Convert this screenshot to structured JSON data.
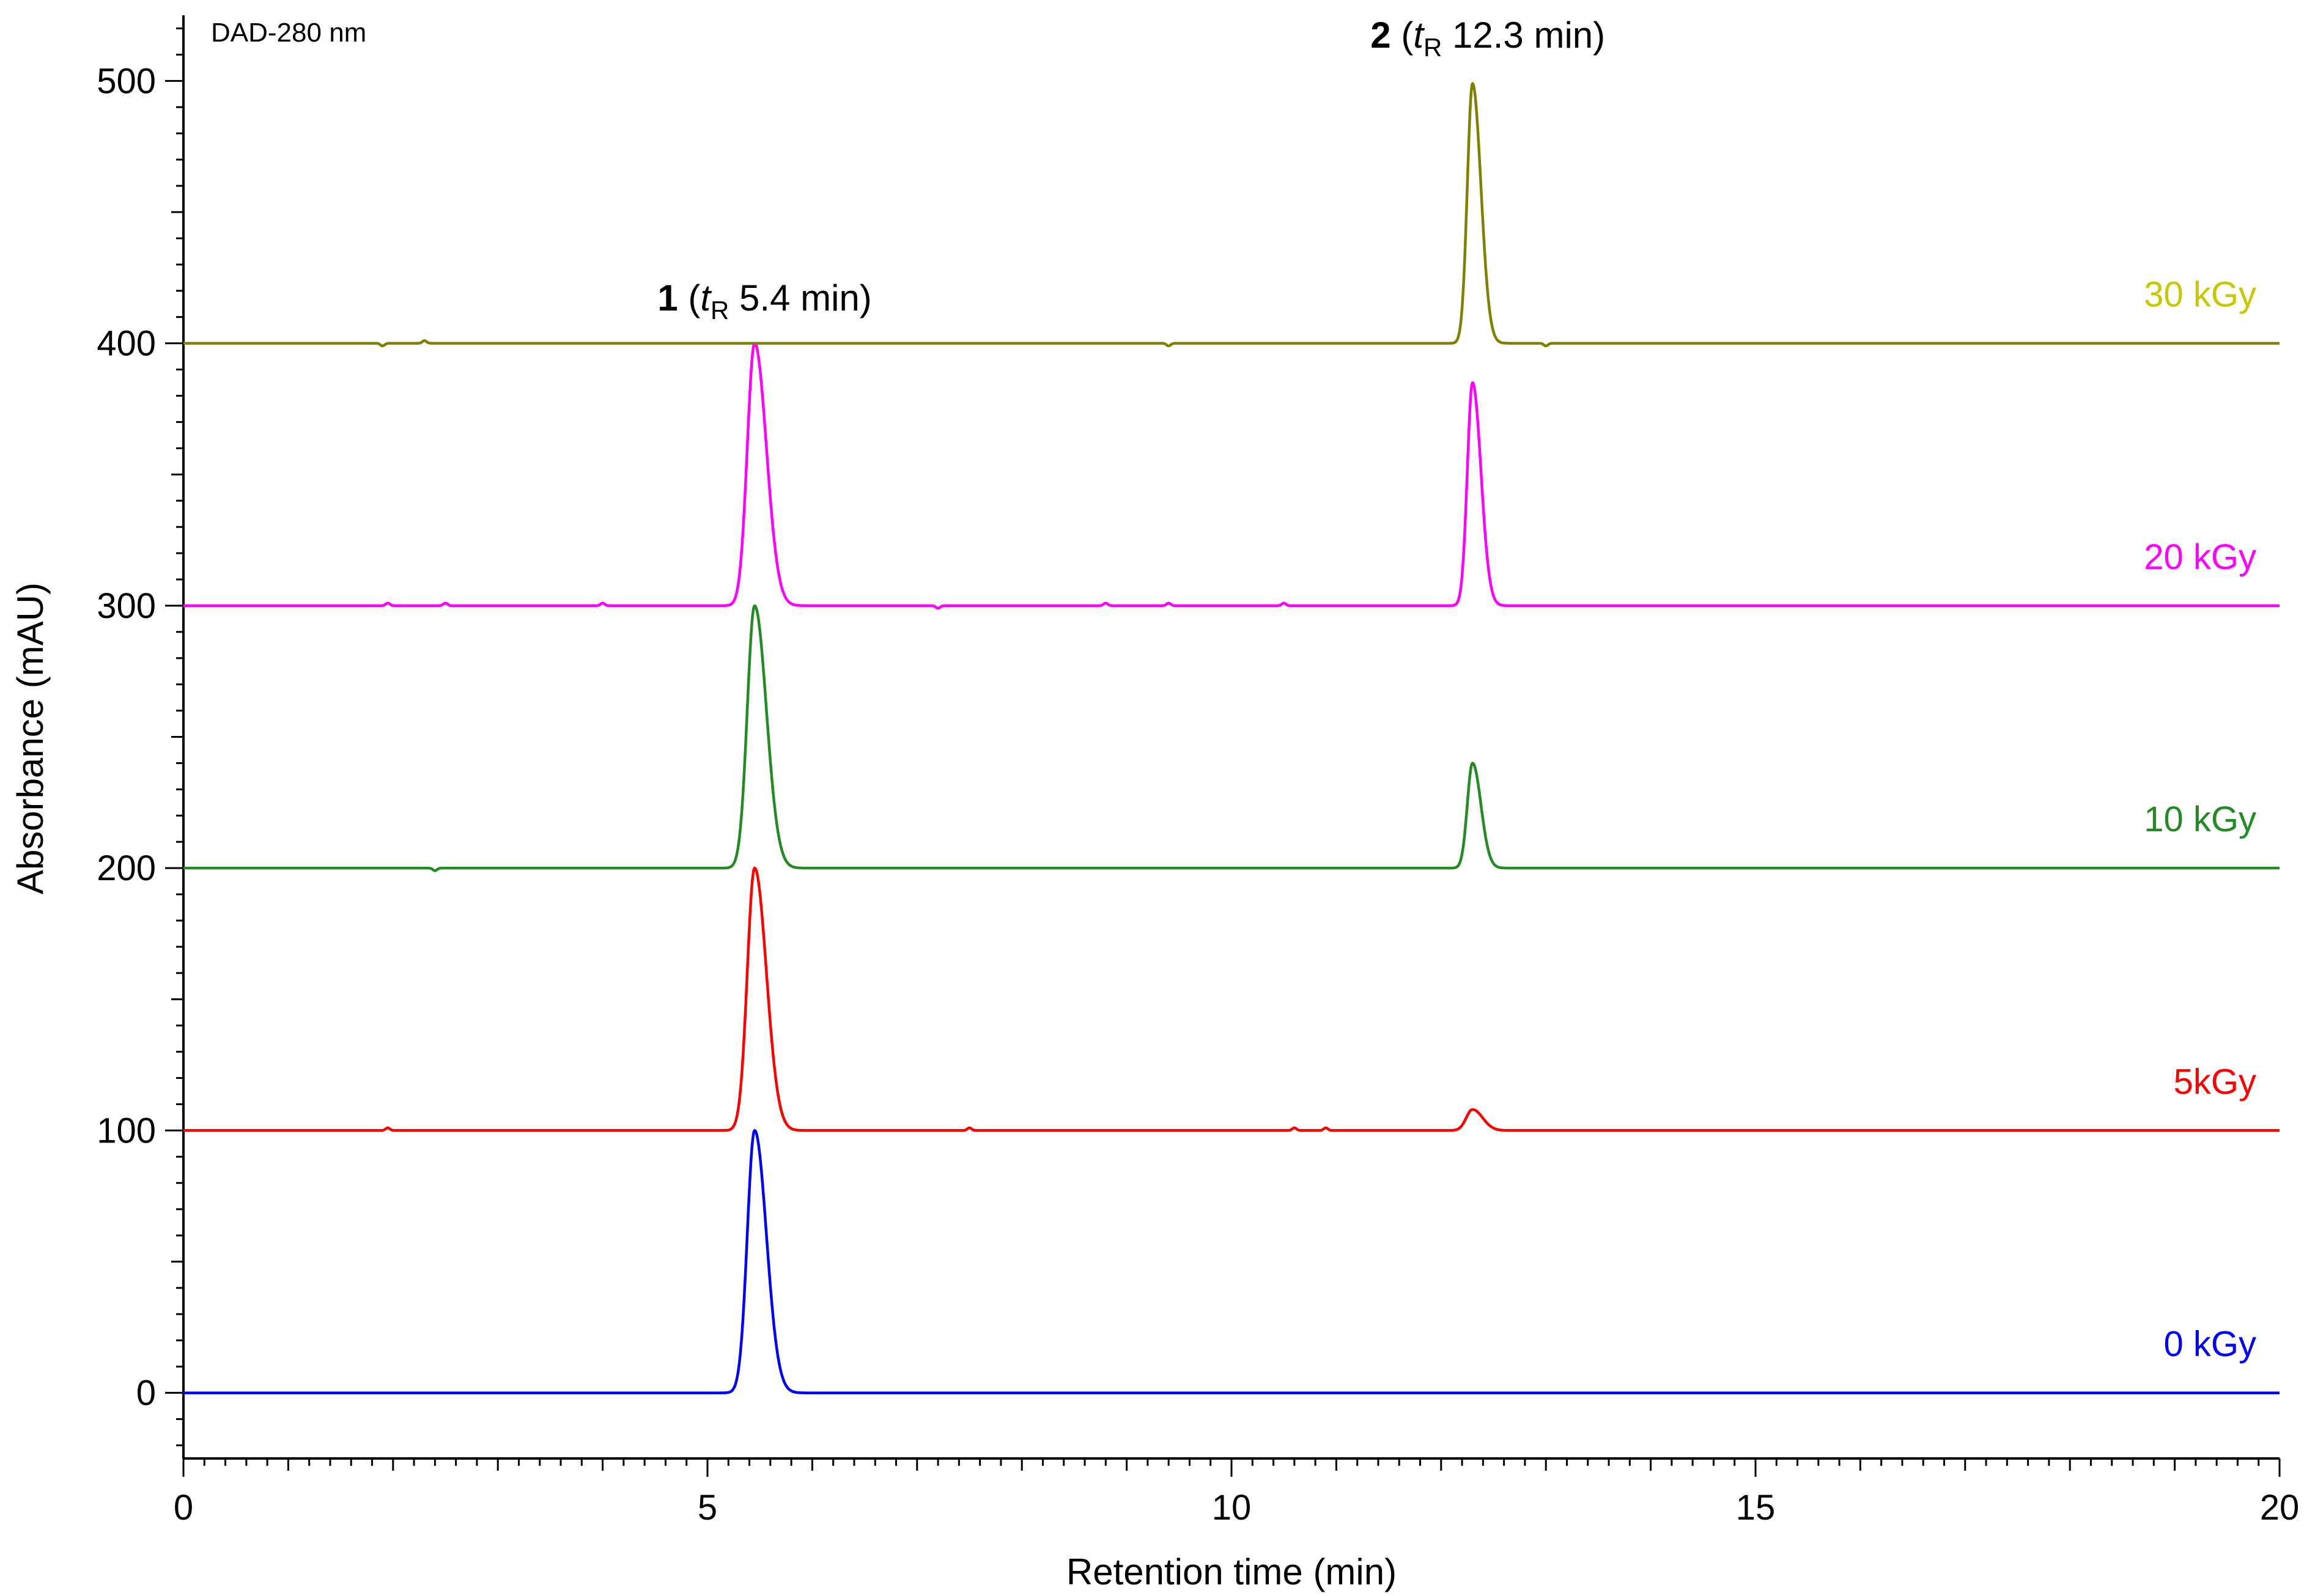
{
  "chart_data": {
    "type": "line",
    "xlabel": "Retention time (min)",
    "ylabel": "Absorbance (mAU)",
    "xlim": [
      0,
      20
    ],
    "ylim": [
      -25,
      525
    ],
    "xticks": [
      0,
      5,
      10,
      15,
      20
    ],
    "yticks": [
      0,
      100,
      200,
      300,
      400,
      500
    ],
    "detector": "DAD-280 nm",
    "grid": false,
    "legend": "none; series labels at right end of each trace",
    "peak_annotations": [
      {
        "id": "peak-1",
        "number": "1",
        "open": " (",
        "t": "t",
        "sub": "R",
        "rest": " 5.4 min)",
        "x": 5.4
      },
      {
        "id": "peak-2",
        "number": "2",
        "open": " (",
        "t": "t",
        "sub": "R",
        "rest": " 12.3 min)",
        "x": 12.3
      }
    ],
    "series": [
      {
        "name": "0 kGy",
        "color": "#0000ff",
        "baseline": 0,
        "peaks": [
          {
            "x": 5.45,
            "height": 100,
            "width": 0.07
          }
        ],
        "noise": []
      },
      {
        "name": "5kGy",
        "color": "#ff0000",
        "baseline": 100,
        "peaks": [
          {
            "x": 5.45,
            "height": 100,
            "width": 0.07
          },
          {
            "x": 12.3,
            "height": 8,
            "width": 0.06
          }
        ],
        "noise": [
          [
            1.95,
            1
          ],
          [
            7.5,
            1
          ],
          [
            10.6,
            1
          ],
          [
            10.9,
            1
          ]
        ]
      },
      {
        "name": "10 kGy",
        "color": "#228b22",
        "baseline": 200,
        "peaks": [
          {
            "x": 5.45,
            "height": 100,
            "width": 0.07
          },
          {
            "x": 12.3,
            "height": 40,
            "width": 0.05
          }
        ],
        "noise": [
          [
            2.4,
            -1
          ]
        ]
      },
      {
        "name": "20 kGy",
        "color": "#ff00ff",
        "baseline": 300,
        "peaks": [
          {
            "x": 5.45,
            "height": 100,
            "width": 0.07
          },
          {
            "x": 12.3,
            "height": 85,
            "width": 0.05
          }
        ],
        "noise": [
          [
            1.95,
            1
          ],
          [
            2.5,
            1
          ],
          [
            4.0,
            1
          ],
          [
            7.2,
            -1
          ],
          [
            8.8,
            1
          ],
          [
            9.4,
            1
          ],
          [
            10.5,
            1
          ]
        ]
      },
      {
        "name": "30 kGy",
        "color": "#808000",
        "label_color": "#c8c800",
        "baseline": 400,
        "peaks": [
          {
            "x": 12.3,
            "height": 99,
            "width": 0.05
          }
        ],
        "noise": [
          [
            1.9,
            -1
          ],
          [
            2.3,
            1
          ],
          [
            9.4,
            -1
          ],
          [
            13.0,
            -1
          ]
        ]
      }
    ]
  }
}
